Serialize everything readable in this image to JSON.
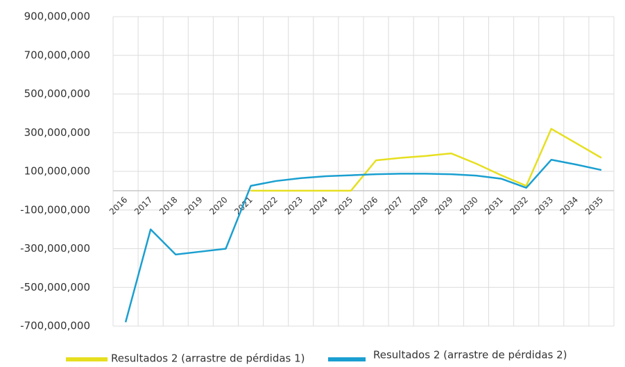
{
  "chart_data": {
    "type": "line",
    "categories": [
      "2016",
      "2017",
      "2018",
      "2019",
      "2020",
      "2021",
      "2022",
      "2023",
      "2024",
      "2025",
      "2026",
      "2027",
      "2028",
      "2029",
      "2030",
      "2031",
      "2032",
      "2033",
      "2034",
      "2035"
    ],
    "series": [
      {
        "name": "Resultados 2 (arrastre de pérdidas 1)",
        "color": "#e6df1f",
        "values": [
          null,
          null,
          null,
          null,
          null,
          0,
          0,
          0,
          0,
          0,
          157000000,
          170000000,
          180000000,
          193000000,
          140000000,
          80000000,
          25000000,
          320000000,
          245000000,
          170000000
        ]
      },
      {
        "name": "Resultados 2 (arrastre de pérdidas 2)",
        "color": "#1a9fd0",
        "values": [
          -680000000,
          -200000000,
          -330000000,
          -315000000,
          -300000000,
          25000000,
          50000000,
          65000000,
          75000000,
          80000000,
          85000000,
          88000000,
          88000000,
          85000000,
          78000000,
          62000000,
          15000000,
          160000000,
          135000000,
          107000000
        ]
      }
    ],
    "ylim": [
      -700000000,
      900000000
    ],
    "yticks": [
      {
        "value": -700000000,
        "label": "-700,000,000"
      },
      {
        "value": -500000000,
        "label": "-500,000,000"
      },
      {
        "value": -300000000,
        "label": "-300,000,000"
      },
      {
        "value": -100000000,
        "label": "-100,000,000"
      },
      {
        "value": 100000000,
        "label": "100,000,000"
      },
      {
        "value": 300000000,
        "label": "300,000,000"
      },
      {
        "value": 500000000,
        "label": "500,000,000"
      },
      {
        "value": 700000000,
        "label": "700,000,000"
      },
      {
        "value": 900000000,
        "label": "900,000,000"
      }
    ],
    "grid": true
  }
}
